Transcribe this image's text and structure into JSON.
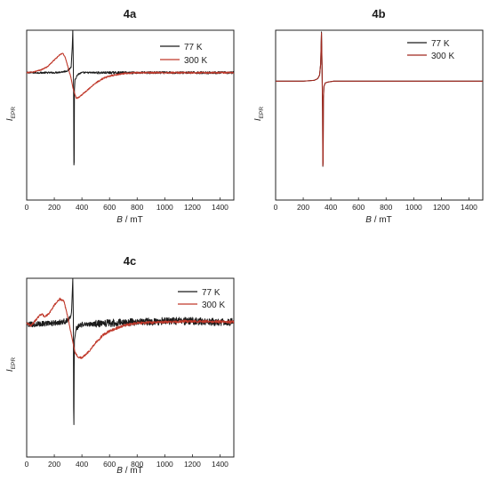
{
  "chart_data": [
    {
      "panel_label": "4a",
      "type": "line",
      "xlabel": "B / mT",
      "ylabel": "IEPR",
      "xlim": [
        0,
        1500
      ],
      "x_ticks": [
        0,
        200,
        400,
        600,
        800,
        1000,
        1200,
        1400
      ],
      "y_ticks_shown": false,
      "legend_position": "top-right",
      "series": [
        {
          "name": "77 K",
          "color": "#1a1a1a",
          "noise": 0.01,
          "points": [
            [
              0,
              0.5
            ],
            [
              100,
              0.5
            ],
            [
              200,
              0.5
            ],
            [
              260,
              0.51
            ],
            [
              290,
              0.52
            ],
            [
              310,
              0.54
            ],
            [
              322,
              0.57
            ],
            [
              330,
              0.8
            ],
            [
              334,
              1.0
            ],
            [
              337,
              0.7
            ],
            [
              340,
              0.2
            ],
            [
              343,
              -0.98
            ],
            [
              346,
              0.3
            ],
            [
              350,
              0.42
            ],
            [
              370,
              0.48
            ],
            [
              400,
              0.5
            ],
            [
              600,
              0.5
            ],
            [
              800,
              0.5
            ],
            [
              1000,
              0.5
            ],
            [
              1200,
              0.5
            ],
            [
              1400,
              0.5
            ],
            [
              1500,
              0.5
            ]
          ]
        },
        {
          "name": "300 K",
          "color": "#c0392b",
          "noise": 0.006,
          "points": [
            [
              0,
              0.5
            ],
            [
              50,
              0.51
            ],
            [
              100,
              0.53
            ],
            [
              150,
              0.57
            ],
            [
              200,
              0.65
            ],
            [
              240,
              0.71
            ],
            [
              260,
              0.73
            ],
            [
              280,
              0.68
            ],
            [
              300,
              0.56
            ],
            [
              320,
              0.45
            ],
            [
              335,
              0.32
            ],
            [
              350,
              0.24
            ],
            [
              360,
              0.2
            ],
            [
              380,
              0.21
            ],
            [
              400,
              0.24
            ],
            [
              450,
              0.31
            ],
            [
              500,
              0.38
            ],
            [
              550,
              0.43
            ],
            [
              600,
              0.46
            ],
            [
              700,
              0.49
            ],
            [
              800,
              0.5
            ],
            [
              1000,
              0.5
            ],
            [
              1200,
              0.5
            ],
            [
              1500,
              0.5
            ]
          ]
        }
      ]
    },
    {
      "panel_label": "4b",
      "type": "line",
      "xlabel": "B / mT",
      "ylabel": "IEPR",
      "xlim": [
        0,
        1500
      ],
      "x_ticks": [
        0,
        200,
        400,
        600,
        800,
        1000,
        1200,
        1400
      ],
      "y_ticks_shown": false,
      "legend_position": "top-right",
      "series": [
        {
          "name": "77 K",
          "color": "#1a1a1a",
          "noise": 0.0,
          "points": [
            [
              0,
              0.4
            ],
            [
              200,
              0.4
            ],
            [
              280,
              0.41
            ],
            [
              305,
              0.43
            ],
            [
              318,
              0.47
            ],
            [
              326,
              0.6
            ],
            [
              332,
              0.98
            ],
            [
              336,
              0.6
            ],
            [
              340,
              0.05
            ],
            [
              343,
              -0.93
            ],
            [
              346,
              0.2
            ],
            [
              350,
              0.34
            ],
            [
              360,
              0.38
            ],
            [
              380,
              0.39
            ],
            [
              420,
              0.4
            ],
            [
              600,
              0.4
            ],
            [
              1000,
              0.4
            ],
            [
              1500,
              0.4
            ]
          ]
        },
        {
          "name": "300 K",
          "color": "#a0281e",
          "noise": 0.0,
          "points": [
            [
              0,
              0.4
            ],
            [
              200,
              0.4
            ],
            [
              280,
              0.41
            ],
            [
              305,
              0.43
            ],
            [
              318,
              0.47
            ],
            [
              326,
              0.6
            ],
            [
              332,
              0.97
            ],
            [
              336,
              0.6
            ],
            [
              340,
              0.05
            ],
            [
              343,
              -0.92
            ],
            [
              346,
              0.2
            ],
            [
              350,
              0.34
            ],
            [
              360,
              0.38
            ],
            [
              380,
              0.39
            ],
            [
              420,
              0.4
            ],
            [
              600,
              0.4
            ],
            [
              1000,
              0.4
            ],
            [
              1500,
              0.4
            ]
          ]
        }
      ]
    },
    {
      "panel_label": "4c",
      "type": "line",
      "xlabel": "B / mT",
      "ylabel": "IEPR",
      "xlim": [
        0,
        1500
      ],
      "x_ticks": [
        0,
        200,
        400,
        600,
        800,
        1000,
        1200,
        1400
      ],
      "y_ticks_shown": false,
      "legend_position": "top-right",
      "series": [
        {
          "name": "77 K",
          "color": "#1a1a1a",
          "noise": 0.03,
          "points": [
            [
              0,
              0.48
            ],
            [
              100,
              0.49
            ],
            [
              200,
              0.5
            ],
            [
              280,
              0.52
            ],
            [
              310,
              0.55
            ],
            [
              325,
              0.62
            ],
            [
              334,
              1.0
            ],
            [
              338,
              0.55
            ],
            [
              341,
              -0.95
            ],
            [
              345,
              0.3
            ],
            [
              360,
              0.45
            ],
            [
              400,
              0.48
            ],
            [
              600,
              0.5
            ],
            [
              800,
              0.51
            ],
            [
              1000,
              0.52
            ],
            [
              1200,
              0.52
            ],
            [
              1400,
              0.51
            ],
            [
              1500,
              0.51
            ]
          ]
        },
        {
          "name": "300 K",
          "color": "#c0392b",
          "noise": 0.01,
          "points": [
            [
              0,
              0.5
            ],
            [
              30,
              0.47
            ],
            [
              60,
              0.52
            ],
            [
              90,
              0.58
            ],
            [
              110,
              0.6
            ],
            [
              130,
              0.57
            ],
            [
              160,
              0.6
            ],
            [
              200,
              0.7
            ],
            [
              240,
              0.77
            ],
            [
              270,
              0.74
            ],
            [
              300,
              0.55
            ],
            [
              330,
              0.32
            ],
            [
              350,
              0.17
            ],
            [
              370,
              0.12
            ],
            [
              400,
              0.11
            ],
            [
              450,
              0.18
            ],
            [
              500,
              0.28
            ],
            [
              550,
              0.36
            ],
            [
              600,
              0.41
            ],
            [
              700,
              0.47
            ],
            [
              800,
              0.5
            ],
            [
              1000,
              0.51
            ],
            [
              1200,
              0.52
            ],
            [
              1500,
              0.51
            ]
          ]
        }
      ]
    }
  ]
}
